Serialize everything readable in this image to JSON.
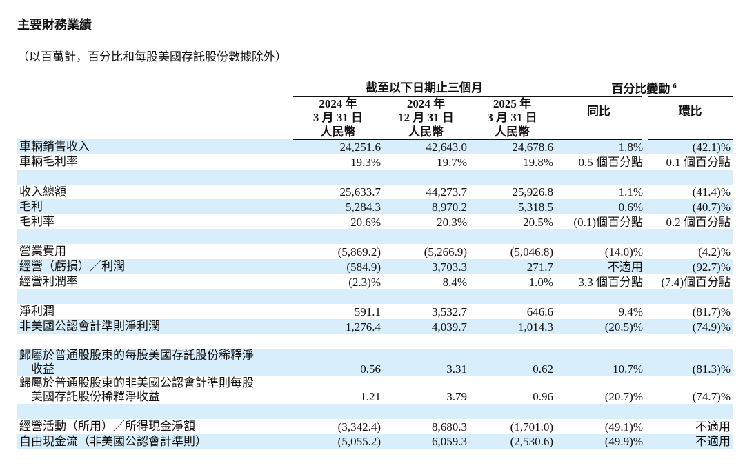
{
  "header": {
    "title": "主要財務業績",
    "subtitle": "（以百萬計，百分比和每股美國存託股份數據除外）"
  },
  "table": {
    "period_group": "截至以下日期止三個月",
    "change_group": "百分比變動",
    "change_note": "6",
    "periods": [
      {
        "year": "2024 年",
        "date": "3 月 31 日",
        "currency": "人民幣"
      },
      {
        "year": "2024 年",
        "date": "12 月 31 日",
        "currency": "人民幣"
      },
      {
        "year": "2025 年",
        "date": "3 月 31 日",
        "currency": "人民幣"
      }
    ],
    "changes": [
      "同比",
      "環比"
    ],
    "groups": [
      [
        {
          "label": "車輛銷售收入",
          "values": [
            "24,251.6",
            "42,643.0",
            "24,678.6",
            "1.8%",
            "(42.1)%"
          ]
        },
        {
          "label": "車輛毛利率",
          "values": [
            "19.3%",
            "19.7%",
            "19.8%",
            "0.5 個百分點",
            "0.1 個百分點"
          ]
        }
      ],
      [
        {
          "label": "收入總額",
          "values": [
            "25,633.7",
            "44,273.7",
            "25,926.8",
            "1.1%",
            "(41.4)%"
          ]
        },
        {
          "label": "毛利",
          "values": [
            "5,284.3",
            "8,970.2",
            "5,318.5",
            "0.6%",
            "(40.7)%"
          ]
        },
        {
          "label": "毛利率",
          "values": [
            "20.6%",
            "20.3%",
            "20.5%",
            "(0.1)個百分點",
            "0.2 個百分點"
          ]
        }
      ],
      [
        {
          "label": "營業費用",
          "values": [
            "(5,869.2)",
            "(5,266.9)",
            "(5,046.8)",
            "(14.0)%",
            "(4.2)%"
          ]
        },
        {
          "label": "經營（虧損）／利潤",
          "values": [
            "(584.9)",
            "3,703.3",
            "271.7",
            "不適用",
            "(92.7)%"
          ]
        },
        {
          "label": "經營利潤率",
          "values": [
            "(2.3)%",
            "8.4%",
            "1.0%",
            "3.3 個百分點",
            "(7.4)個百分點"
          ]
        }
      ],
      [
        {
          "label": "淨利潤",
          "values": [
            "591.1",
            "3,532.7",
            "646.6",
            "9.4%",
            "(81.7)%"
          ]
        },
        {
          "label": "非美國公認會計準則淨利潤",
          "values": [
            "1,276.4",
            "4,039.7",
            "1,014.3",
            "(20.5)%",
            "(74.9)%"
          ]
        }
      ],
      [
        {
          "label": [
            "歸屬於普通股股東的每股美國存託股份稀釋淨",
            "收益"
          ],
          "values": [
            "0.56",
            "3.31",
            "0.62",
            "10.7%",
            "(81.3)%"
          ]
        },
        {
          "label": [
            "歸屬於普通股股東的非美國公認會計準則每股",
            "美國存託股份稀釋淨收益"
          ],
          "values": [
            "1.21",
            "3.79",
            "0.96",
            "(20.7)%",
            "(74.7)%"
          ]
        }
      ],
      [
        {
          "label": "經營活動（所用）／所得現金淨額",
          "values": [
            "(3,342.4)",
            "8,680.3",
            "(1,701.0)",
            "(49.1)%",
            "不適用"
          ]
        },
        {
          "label": "自由現金流（非美國公認會計準則）",
          "values": [
            "(5,055.2)",
            "6,059.3",
            "(2,530.6)",
            "(49.9)%",
            "不適用"
          ]
        }
      ]
    ]
  }
}
